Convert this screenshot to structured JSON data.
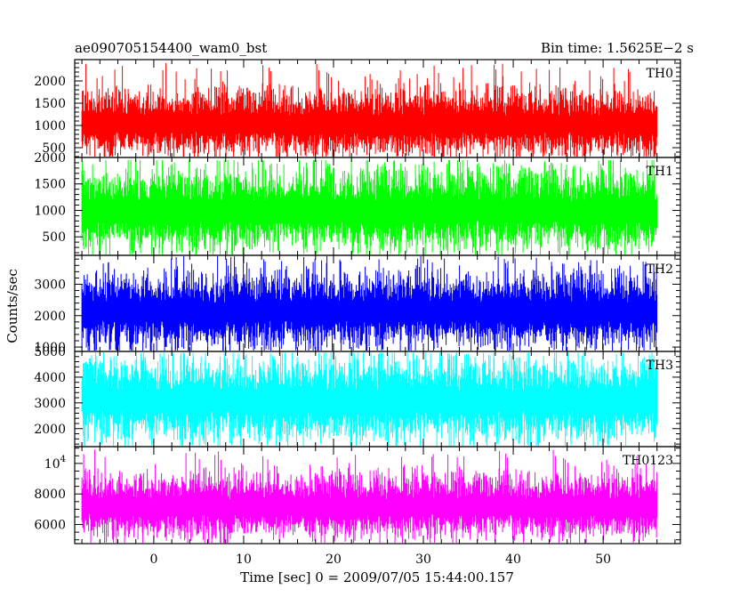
{
  "chart_data": {
    "type": "line",
    "title_left": "ae090705154400_wam0_bst",
    "title_right": "Bin time: 1.5625E−2 s",
    "xlabel": "Time [sec] 0 = 2009/07/05 15:44:00.157",
    "ylabel": "Counts/sec",
    "xlim": [
      -8.8,
      58.6
    ],
    "x_ticks": [
      0,
      10,
      20,
      30,
      40,
      50
    ],
    "x_tick_labels": [
      "0",
      "10",
      "20",
      "30",
      "40",
      "50"
    ],
    "x_minor_step": 2,
    "series_x_range": [
      -8.0,
      56.0
    ],
    "grid": false,
    "panels": [
      {
        "name": "TH0",
        "color": "#ff0000",
        "ylim": [
          280,
          2480
        ],
        "y_ticks": [
          500,
          1000,
          1500,
          2000
        ],
        "y_tick_labels": [
          "500",
          "1000",
          "1500",
          "2000"
        ],
        "y_minor_step": 100,
        "mean": 1050,
        "low_typical": 550,
        "high_typical": 1750,
        "min": 290,
        "max": 2400
      },
      {
        "name": "TH1",
        "color": "#00ff00",
        "ylim": [
          150,
          2000
        ],
        "y_ticks": [
          500,
          1000,
          1500,
          2000
        ],
        "y_tick_labels": [
          "500",
          "1000",
          "1500",
          "2000"
        ],
        "y_minor_step": 100,
        "mean": 1000,
        "low_typical": 430,
        "high_typical": 1650,
        "min": 160,
        "max": 1950
      },
      {
        "name": "TH2",
        "color": "#0000ff",
        "ylim": [
          860,
          3920
        ],
        "y_ticks": [
          1000,
          2000,
          3000
        ],
        "y_tick_labels": [
          "1000",
          "2000",
          "3000"
        ],
        "y_minor_step": 200,
        "mean": 2150,
        "low_typical": 1300,
        "high_typical": 3200,
        "min": 870,
        "max": 3900
      },
      {
        "name": "TH3",
        "color": "#00ffff",
        "ylim": [
          1300,
          5000
        ],
        "y_ticks": [
          2000,
          3000,
          4000,
          5000
        ],
        "y_tick_labels": [
          "2000",
          "3000",
          "4000",
          "5000"
        ],
        "y_minor_step": 200,
        "mean": 3100,
        "low_typical": 1850,
        "high_typical": 4400,
        "min": 1310,
        "max": 4950
      },
      {
        "name": "TH0123",
        "color": "#ff00ff",
        "ylim": [
          4750,
          11100
        ],
        "y_ticks": [
          6000,
          8000,
          10000
        ],
        "y_tick_labels": [
          "6000",
          "8000",
          ""
        ],
        "y_tick_label_special": {
          "value": 10000,
          "base": "10",
          "exp": "4"
        },
        "y_minor_step": 500,
        "mean": 7200,
        "low_typical": 5700,
        "high_typical": 9000,
        "min": 4800,
        "max": 10950
      }
    ]
  }
}
